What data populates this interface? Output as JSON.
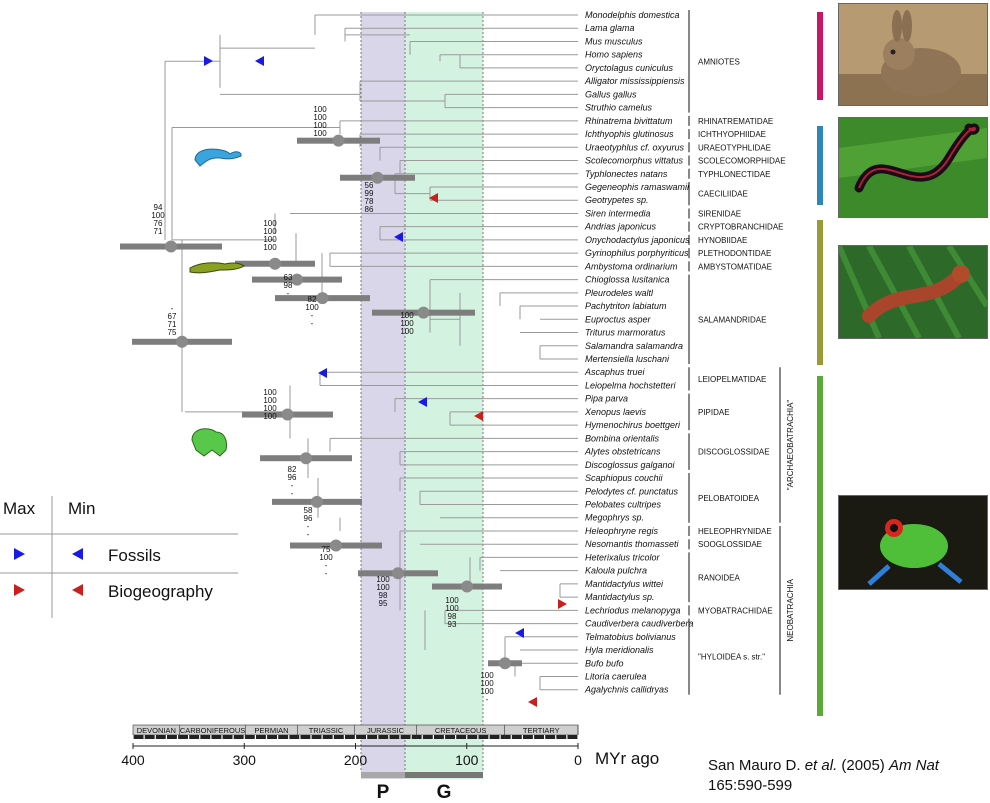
{
  "taxa": [
    "Monodelphis domestica",
    "Lama glama",
    "Mus musculus",
    "Homo sapiens",
    "Oryctolagus cuniculus",
    "Alligator mississippiensis",
    "Gallus gallus",
    "Struthio camelus",
    "Rhinatrema bivittatum",
    "Ichthyophis glutinosus",
    "Uraeotyphlus cf. oxyurus",
    "Scolecomorphus vittatus",
    "Typhlonectes natans",
    "Gegeneophis ramaswamii",
    "Geotrypetes sp.",
    "Siren intermedia",
    "Andrias japonicus",
    "Onychodactylus japonicus",
    "Gyrinophilus porphyriticus",
    "Ambystoma ordinarium",
    "Chioglossa lusitanica",
    "Pleurodeles waltl",
    "Pachytriton labiatum",
    "Euproctus asper",
    "Triturus marmoratus",
    "Salamandra salamandra",
    "Mertensiella luschani",
    "Ascaphus truei",
    "Leiopelma hochstetteri",
    "Pipa parva",
    "Xenopus laevis",
    "Hymenochirus boettgeri",
    "Bombina orientalis",
    "Alytes obstetricans",
    "Discoglossus galganoi",
    "Scaphiopus couchii",
    "Pelodytes cf. punctatus",
    "Pelobates cultripes",
    "Megophrys sp.",
    "Heleophryne regis",
    "Nesomantis thomasseti",
    "Heterixalus tricolor",
    "Kaloula pulchra",
    "Mantidactylus wittei",
    "Mantidactylus sp.",
    "Lechriodus melanopyga",
    "Caudiverbera caudiverbera",
    "Telmatobius bolivianus",
    "Hyla meridionalis",
    "Bufo bufo",
    "Litoria caerulea",
    "Agalychnis callidryas"
  ],
  "families": [
    {
      "label": "AMNIOTES",
      "first": 0,
      "last": 7
    },
    {
      "label": "RHINATREMATIDAE",
      "first": 8,
      "last": 8
    },
    {
      "label": "ICHTHYOPHIIDAE",
      "first": 9,
      "last": 9
    },
    {
      "label": "URAEOTYPHLIDAE",
      "first": 10,
      "last": 10
    },
    {
      "label": "SCOLECOMORPHIDAE",
      "first": 11,
      "last": 11
    },
    {
      "label": "TYPHLONECTIDAE",
      "first": 12,
      "last": 12
    },
    {
      "label": "CAECILIIDAE",
      "first": 13,
      "last": 14
    },
    {
      "label": "SIRENIDAE",
      "first": 15,
      "last": 15
    },
    {
      "label": "CRYPTOBRANCHIDAE",
      "first": 16,
      "last": 16
    },
    {
      "label": "HYNOBIIDAE",
      "first": 17,
      "last": 17
    },
    {
      "label": "PLETHODONTIDAE",
      "first": 18,
      "last": 18
    },
    {
      "label": "AMBYSTOMATIDAE",
      "first": 19,
      "last": 19
    },
    {
      "label": "SALAMANDRIDAE",
      "first": 20,
      "last": 26
    },
    {
      "label": "LEIOPELMATIDAE",
      "first": 27,
      "last": 28
    },
    {
      "label": "PIPIDAE",
      "first": 29,
      "last": 31
    },
    {
      "label": "DISCOGLOSSIDAE",
      "first": 32,
      "last": 34
    },
    {
      "label": "PELOBATOIDEA",
      "first": 35,
      "last": 38
    },
    {
      "label": "HELEOPHRYNIDAE",
      "first": 39,
      "last": 39
    },
    {
      "label": "SOOGLOSSIDAE",
      "first": 40,
      "last": 40
    },
    {
      "label": "RANOIDEA",
      "first": 41,
      "last": 44
    },
    {
      "label": "MYOBATRACHIDAE",
      "first": 45,
      "last": 45
    },
    {
      "label": "\"HYLOIDEA s. str.\"",
      "first": 46,
      "last": 51
    }
  ],
  "superclades": [
    {
      "label": "\"ARCHAEOBATRACHIA\"",
      "first": 27,
      "last": 38
    },
    {
      "label": "NEOBATRACHIA",
      "first": 39,
      "last": 51
    }
  ],
  "support_labels": [
    {
      "lines": [
        "100",
        "100",
        "100",
        "100"
      ]
    },
    {
      "lines": [
        "56",
        "99",
        "78",
        "86"
      ]
    },
    {
      "lines": [
        "94",
        "100",
        "76",
        "71"
      ]
    },
    {
      "lines": [
        "100",
        "100",
        "100",
        "100"
      ]
    },
    {
      "lines": [
        "63",
        "98",
        "-"
      ]
    },
    {
      "lines": [
        "82",
        "100",
        "-",
        "-"
      ]
    },
    {
      "lines": [
        "100",
        "100",
        "100"
      ]
    },
    {
      "lines": [
        "-",
        "67",
        "71",
        "75"
      ]
    },
    {
      "lines": [
        "100",
        "100",
        "100",
        "100"
      ]
    },
    {
      "lines": [
        "82",
        "96",
        "-",
        "-"
      ]
    },
    {
      "lines": [
        "58",
        "96",
        "-",
        "-"
      ]
    },
    {
      "lines": [
        "75",
        "100",
        "-",
        "-"
      ]
    },
    {
      "lines": [
        "100",
        "100",
        "98",
        "95"
      ]
    },
    {
      "lines": [
        "100",
        "100",
        "98",
        "93"
      ]
    },
    {
      "lines": [
        "100",
        "100",
        "100",
        "-"
      ]
    }
  ],
  "periods": [
    "DEVONIAN",
    "CARBONIFEROUS",
    "PERMIAN",
    "TRIASSIC",
    "JURASSIC",
    "CRETACEOUS",
    "TERTIARY"
  ],
  "axis": {
    "ticks": [
      "400",
      "300",
      "200",
      "100",
      "0"
    ],
    "unit": "MYr ago"
  },
  "bands": {
    "p_label": "P",
    "g_label": "G",
    "p_color": "#dad6ea",
    "g_color": "#d4f2e0"
  },
  "legend": {
    "max_header": "Max",
    "min_header": "Min",
    "fossils_label": "Fossils",
    "biogeography_label": "Biogeography",
    "fossil_color": "#1a1ae6",
    "biogeography_color": "#c8201c"
  },
  "clade_bars": {
    "amniotes": "#c8176a",
    "caecilians": "#2f86b8",
    "salamanders": "#9a9a36",
    "frogs": "#5aaa3a"
  },
  "citation": {
    "authors": "San Mauro D.",
    "etal": "et al.",
    "year": "(2005)",
    "journal": "Am Nat",
    "ref": "165:590-599"
  },
  "photos": [
    {
      "name": "rabbit-photo"
    },
    {
      "name": "caecilian-photo"
    },
    {
      "name": "salamander-photo"
    },
    {
      "name": "treefrog-photo"
    }
  ]
}
